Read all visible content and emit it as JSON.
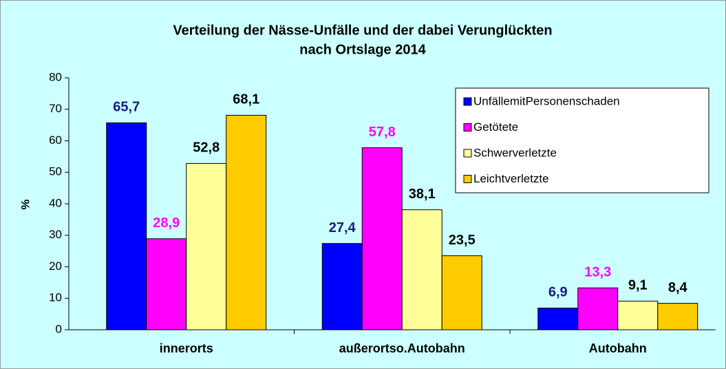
{
  "chart_data": {
    "type": "bar",
    "title": [
      "Verteilung der Nässe-Unfälle und der dabei Verunglückten",
      "nach Ortslage 2014"
    ],
    "ylabel": "%",
    "categories": [
      "innerorts",
      "außerortso.Autobahn",
      "Autobahn"
    ],
    "series": [
      {
        "name": "UnfällemitPersonenschaden",
        "color": "#0000ff",
        "label_color": "#1a1a80",
        "values": [
          65.7,
          27.4,
          6.9
        ],
        "value_labels": [
          "65,7",
          "27,4",
          "6,9"
        ]
      },
      {
        "name": "Getötete",
        "color": "#ff00ff",
        "label_color": "#ff00ff",
        "values": [
          28.9,
          57.8,
          13.3
        ],
        "value_labels": [
          "28,9",
          "57,8",
          "13,3"
        ]
      },
      {
        "name": "Schwerverletzte",
        "color": "#ffff99",
        "label_color": "#000000",
        "values": [
          52.8,
          38.1,
          9.1
        ],
        "value_labels": [
          "52,8",
          "38,1",
          "9,1"
        ]
      },
      {
        "name": "Leichtverletzte",
        "color": "#ffcc00",
        "label_color": "#000000",
        "values": [
          68.1,
          23.5,
          8.4
        ],
        "value_labels": [
          "68,1",
          "23,5",
          "8,4"
        ]
      }
    ],
    "ylim": [
      0,
      80
    ],
    "yticks": [
      0,
      10,
      20,
      30,
      40,
      50,
      60,
      70,
      80
    ],
    "grid": false,
    "legend": "upper right"
  }
}
